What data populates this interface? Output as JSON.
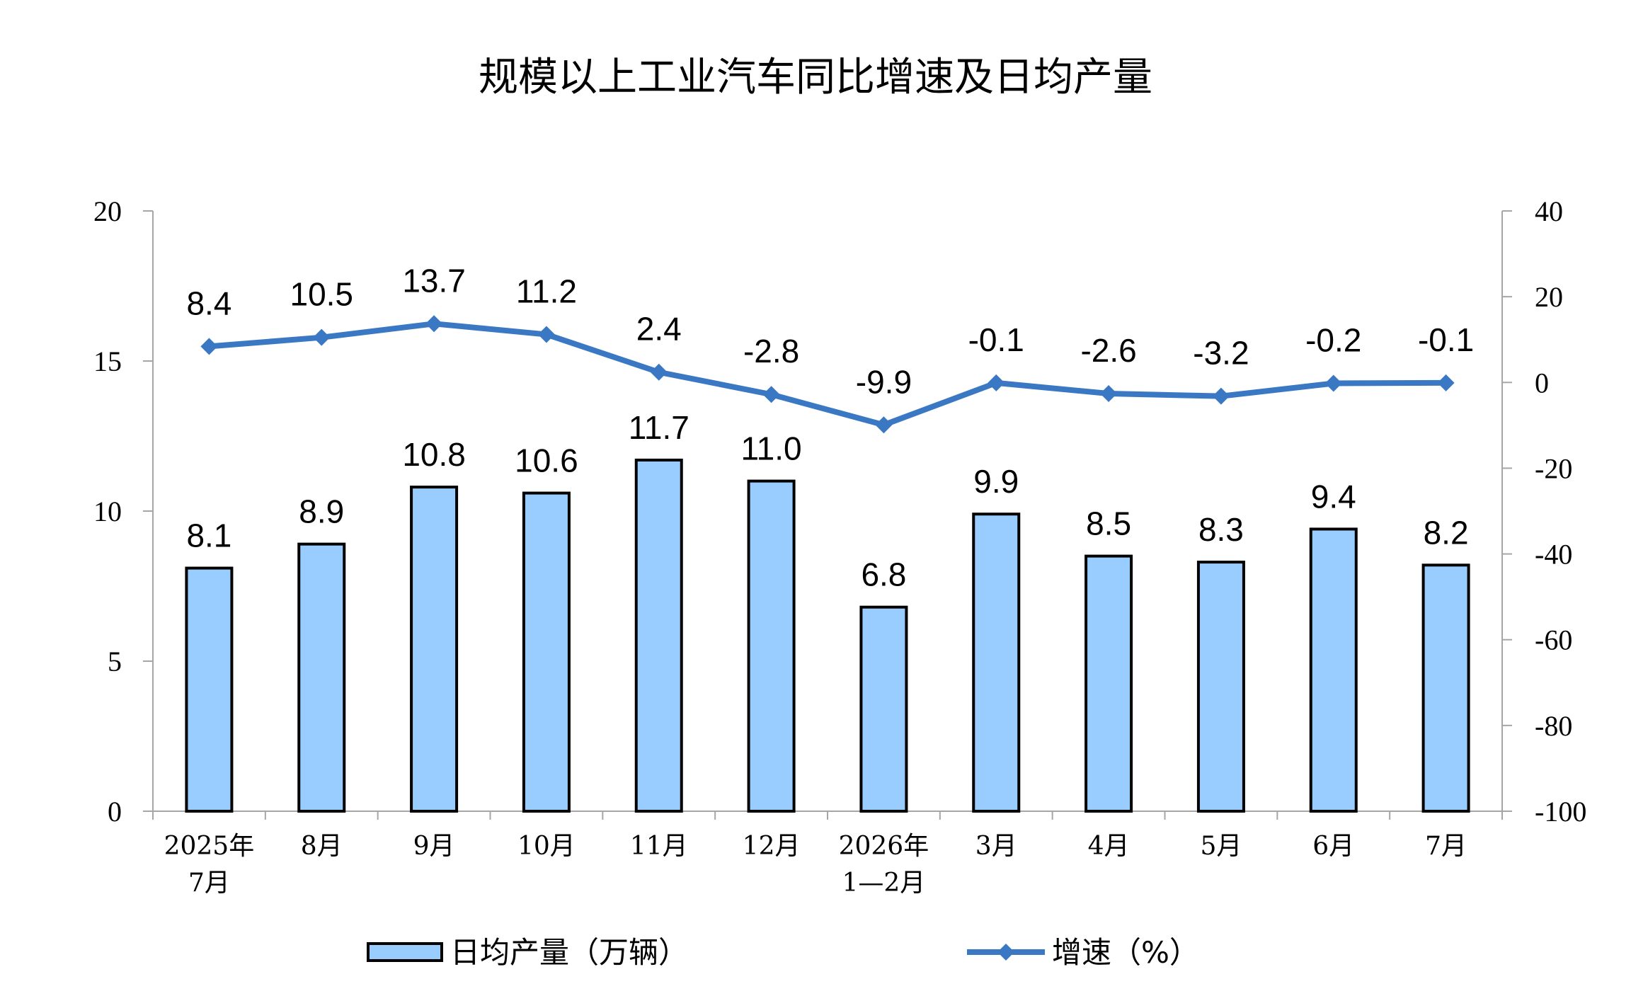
{
  "chart_data": {
    "type": "bar+line",
    "title": "规模以上工业汽车同比增速及日均产量",
    "categories": [
      [
        "2025年",
        "7月"
      ],
      [
        "8月"
      ],
      [
        "9月"
      ],
      [
        "10月"
      ],
      [
        "11月"
      ],
      [
        "12月"
      ],
      [
        "2026年",
        "1—2月"
      ],
      [
        "3月"
      ],
      [
        "4月"
      ],
      [
        "5月"
      ],
      [
        "6月"
      ],
      [
        "7月"
      ]
    ],
    "series": [
      {
        "name": "日均产量（万辆）",
        "kind": "bar",
        "axis": "left",
        "values": [
          8.1,
          8.9,
          10.8,
          10.6,
          11.7,
          11.0,
          6.8,
          9.9,
          8.5,
          8.3,
          9.4,
          8.2
        ],
        "labels": [
          "8.1",
          "8.9",
          "10.8",
          "10.6",
          "11.7",
          "11.0",
          "6.8",
          "9.9",
          "8.5",
          "8.3",
          "9.4",
          "8.2"
        ],
        "color": "#99ccff",
        "stroke": "#000000"
      },
      {
        "name": "增速（%）",
        "kind": "line",
        "axis": "right",
        "values": [
          8.4,
          10.5,
          13.7,
          11.2,
          2.4,
          -2.8,
          -9.9,
          -0.1,
          -2.6,
          -3.2,
          -0.2,
          -0.1
        ],
        "labels": [
          "8.4",
          "10.5",
          "13.7",
          "11.2",
          "2.4",
          "-2.8",
          "-9.9",
          "-0.1",
          "-2.6",
          "-3.2",
          "-0.2",
          "-0.1"
        ],
        "color": "#3a78c4"
      }
    ],
    "y_left": {
      "range": [
        0,
        20
      ],
      "ticks": [
        "0",
        "5",
        "10",
        "15",
        "20"
      ]
    },
    "y_right": {
      "range": [
        -100,
        40
      ],
      "ticks": [
        "-100",
        "-80",
        "-60",
        "-40",
        "-20",
        "0",
        "20",
        "40"
      ]
    },
    "grid": false,
    "legend_position": "bottom"
  }
}
